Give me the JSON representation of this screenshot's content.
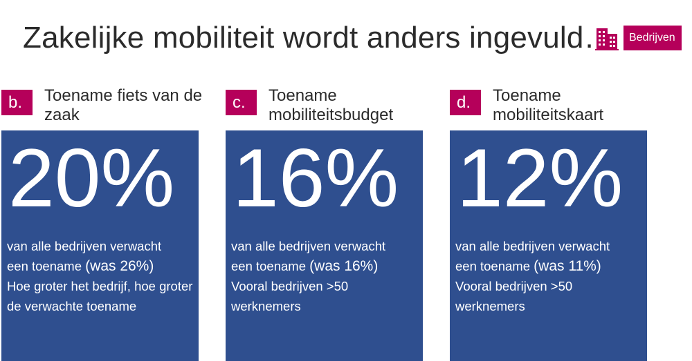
{
  "title": "Zakelijke mobiliteit wordt anders ingevuld…",
  "badge": {
    "icon": "building-icon",
    "label": "Bedrijven",
    "color": "#b5005a"
  },
  "colors": {
    "accent": "#b5005a",
    "panel": "#2f4f8f"
  },
  "cards": [
    {
      "letter": "b.",
      "heading": "Toename fiets van de zaak",
      "percent": "20%",
      "line1": "van alle bedrijven verwacht",
      "line2_prefix": "een toename ",
      "line2_big": "(was 26%)",
      "line3": "Hoe groter het bedrijf, hoe groter de verwachte toename"
    },
    {
      "letter": "c.",
      "heading": "Toename mobiliteitsbudget",
      "percent": "16%",
      "line1": "van alle bedrijven verwacht",
      "line2_prefix": "een toename ",
      "line2_big": "(was 16%)",
      "line3": "Vooral bedrijven >50 werknemers"
    },
    {
      "letter": "d.",
      "heading": "Toename mobiliteitskaart",
      "percent": "12%",
      "line1": "van alle bedrijven verwacht",
      "line2_prefix": "een toename ",
      "line2_big": "(was 11%)",
      "line3": "Vooral bedrijven >50 werknemers"
    }
  ]
}
